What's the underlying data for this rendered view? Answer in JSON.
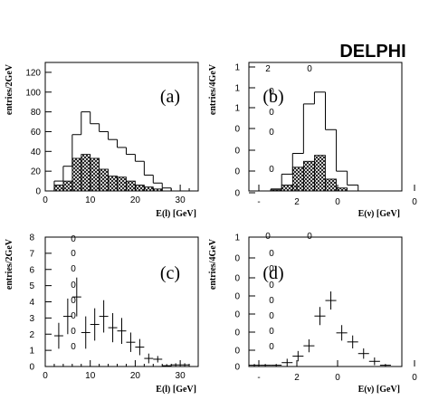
{
  "brand": "DELPHI",
  "colors": {
    "axis": "#000000",
    "hatch": "#000000",
    "background": "#ffffff"
  },
  "chart_data": [
    {
      "type": "bar",
      "panel_label": "(a)",
      "xlabel": "E(l)  [GeV]",
      "ylabel": "entries/2GeV",
      "xlim": [
        0,
        34
      ],
      "ylim": [
        0,
        130
      ],
      "xticks": [
        "0",
        "10",
        "20",
        "30"
      ],
      "yticks": [
        "0",
        "20",
        "40",
        "60",
        "80",
        "100",
        "120"
      ],
      "bin_edges": [
        2,
        4,
        6,
        8,
        10,
        12,
        14,
        16,
        18,
        20,
        22,
        24,
        26,
        28
      ],
      "series": [
        {
          "values": [
            10,
            25,
            57,
            80,
            68,
            60,
            52,
            44,
            37,
            30,
            16,
            8,
            3
          ]
        },
        {
          "values": [
            6,
            10,
            33,
            37,
            33,
            22,
            15,
            14,
            10,
            6,
            4,
            2,
            0
          ]
        }
      ]
    },
    {
      "type": "bar",
      "panel_label": "(b)",
      "xlabel": "E(ν)  [GeV]",
      "ylabel": "entries/4GeV",
      "xlim": [
        -6,
        8
      ],
      "ylim": [
        0,
        1.3
      ],
      "xticks": [
        "-",
        "2",
        "0",
        "0"
      ],
      "yticks": [
        "0",
        "0",
        "0",
        "0",
        "1",
        "1",
        "1"
      ],
      "annotations": [
        "2",
        "0"
      ],
      "bin_edges": [
        -4,
        -3,
        -2,
        -1,
        0,
        1,
        2,
        3,
        4
      ],
      "series": [
        {
          "values": [
            0.02,
            0.17,
            0.38,
            0.88,
            1.0,
            0.62,
            0.2,
            0.06
          ]
        },
        {
          "values": [
            0.01,
            0.06,
            0.24,
            0.3,
            0.36,
            0.12,
            0.03,
            0.0
          ]
        }
      ]
    },
    {
      "type": "scatter",
      "panel_label": "(c)",
      "xlabel": "E(l)  [GeV]",
      "ylabel": "entries/2GeV",
      "xlim": [
        0,
        34
      ],
      "ylim": [
        0,
        8
      ],
      "xticks": [
        "0",
        "10",
        "20",
        "30"
      ],
      "yticks": [
        "0",
        "1",
        "2",
        "3",
        "4",
        "5",
        "6",
        "7",
        "8"
      ],
      "side_labels": [
        "0",
        "0",
        "0",
        "0",
        "0",
        "0",
        "0",
        "0"
      ],
      "points": [
        {
          "x": 3,
          "y": 1.9,
          "err": 0.8
        },
        {
          "x": 5,
          "y": 3.1,
          "err": 1.1
        },
        {
          "x": 7,
          "y": 4.3,
          "err": 1.2
        },
        {
          "x": 9,
          "y": 2.1,
          "err": 1.0
        },
        {
          "x": 11,
          "y": 2.6,
          "err": 1.0
        },
        {
          "x": 13,
          "y": 3.1,
          "err": 1.0
        },
        {
          "x": 15,
          "y": 2.4,
          "err": 0.9
        },
        {
          "x": 17,
          "y": 2.2,
          "err": 0.8
        },
        {
          "x": 19,
          "y": 1.5,
          "err": 0.6
        },
        {
          "x": 21,
          "y": 1.2,
          "err": 0.5
        },
        {
          "x": 23,
          "y": 0.5,
          "err": 0.3
        },
        {
          "x": 25,
          "y": 0.45,
          "err": 0.2
        },
        {
          "x": 27,
          "y": 0.05,
          "err": 0.1
        },
        {
          "x": 29,
          "y": 0.1,
          "err": 0.1
        },
        {
          "x": 31,
          "y": 0.1,
          "err": 0.1
        },
        {
          "x": 33,
          "y": 0.0,
          "err": 0.0
        }
      ]
    },
    {
      "type": "scatter",
      "panel_label": "(d)",
      "xlabel": "E(ν)  [GeV]",
      "ylabel": "entries/4GeV",
      "xlim": [
        -6,
        8
      ],
      "ylim": [
        0,
        1
      ],
      "xticks": [
        "-",
        "2",
        "0",
        "0"
      ],
      "yticks": [
        "0",
        "0",
        "0",
        "0",
        "0",
        "0",
        "0",
        "1"
      ],
      "annotations": [
        "0",
        "0"
      ],
      "points": [
        {
          "x": -5.5,
          "y": 0.01,
          "err": 0.01
        },
        {
          "x": -4.5,
          "y": 0.01,
          "err": 0.01
        },
        {
          "x": -3.5,
          "y": 0.01,
          "err": 0.01
        },
        {
          "x": -2.5,
          "y": 0.03,
          "err": 0.03
        },
        {
          "x": -1.5,
          "y": 0.08,
          "err": 0.04
        },
        {
          "x": -0.5,
          "y": 0.16,
          "err": 0.05
        },
        {
          "x": 0.5,
          "y": 0.39,
          "err": 0.07
        },
        {
          "x": 1.5,
          "y": 0.51,
          "err": 0.07
        },
        {
          "x": 2.5,
          "y": 0.26,
          "err": 0.06
        },
        {
          "x": 3.5,
          "y": 0.19,
          "err": 0.05
        },
        {
          "x": 4.5,
          "y": 0.1,
          "err": 0.04
        },
        {
          "x": 5.5,
          "y": 0.04,
          "err": 0.03
        },
        {
          "x": 6.5,
          "y": 0.01,
          "err": 0.01
        },
        {
          "x": 7.5,
          "y": 0.0,
          "err": 0.0
        }
      ]
    }
  ]
}
